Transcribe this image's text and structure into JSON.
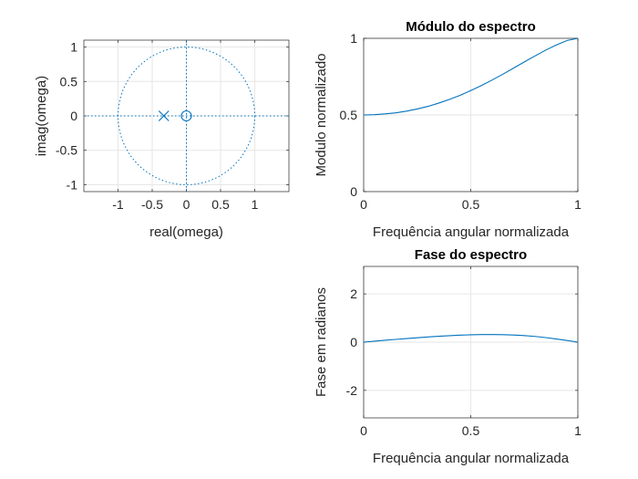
{
  "chart_data": [
    {
      "type": "scatter",
      "name": "pole-zero-plot",
      "xlabel": "real(omega)",
      "ylabel": "imag(omega)",
      "xlim": [
        -1.5,
        1.5
      ],
      "ylim": [
        -1.1,
        1.1
      ],
      "xticks": [
        -1,
        -0.5,
        0,
        0.5,
        1
      ],
      "xtick_labels": [
        "-1",
        "-0.5",
        "0",
        "0.5",
        "1"
      ],
      "yticks": [
        -1,
        -0.5,
        0,
        0.5,
        1
      ],
      "ytick_labels": [
        "-1",
        "-0.5",
        "0",
        "0.5",
        "1"
      ],
      "grid": true,
      "unit_circle": true,
      "zeros": [
        [
          0,
          0
        ]
      ],
      "poles": [
        [
          -0.33,
          0
        ]
      ],
      "color": "#0072BD",
      "grid_color": "#e6e6e6",
      "axis_color": "#262626"
    },
    {
      "type": "line",
      "name": "magnitude",
      "title": "Módulo do espectro",
      "xlabel": "Frequência angular normalizada",
      "ylabel": "Modulo normalizado",
      "xlim": [
        0,
        1
      ],
      "ylim": [
        0,
        1
      ],
      "xticks": [
        0,
        0.5,
        1
      ],
      "xtick_labels": [
        "0",
        "0.5",
        "1"
      ],
      "yticks": [
        0,
        0.5,
        1
      ],
      "ytick_labels": [
        "0",
        "0.5",
        "1"
      ],
      "grid": true,
      "series": [
        {
          "x": [
            0,
            0.05,
            0.1,
            0.15,
            0.2,
            0.25,
            0.3,
            0.35,
            0.4,
            0.45,
            0.5,
            0.55,
            0.6,
            0.65,
            0.7,
            0.75,
            0.8,
            0.85,
            0.9,
            0.95,
            1.0
          ],
          "y": [
            0.5,
            0.502,
            0.507,
            0.514,
            0.525,
            0.539,
            0.556,
            0.577,
            0.601,
            0.628,
            0.659,
            0.692,
            0.728,
            0.766,
            0.806,
            0.846,
            0.885,
            0.923,
            0.957,
            0.986,
            1.0
          ]
        }
      ],
      "color": "#0072BD",
      "grid_color": "#e6e6e6",
      "axis_color": "#262626"
    },
    {
      "type": "line",
      "name": "phase",
      "title": "Fase do espectro",
      "xlabel": "Frequência angular normalizada",
      "ylabel": "Fase em radianos",
      "xlim": [
        0,
        1
      ],
      "ylim": [
        -3.1416,
        3.1416
      ],
      "xticks": [
        0,
        0.5,
        1
      ],
      "xtick_labels": [
        "0",
        "0.5",
        "1"
      ],
      "yticks": [
        -2,
        0,
        2
      ],
      "ytick_labels": [
        "-2",
        "0",
        "2"
      ],
      "grid": true,
      "series": [
        {
          "x": [
            0,
            0.05,
            0.1,
            0.15,
            0.2,
            0.25,
            0.3,
            0.35,
            0.4,
            0.45,
            0.5,
            0.55,
            0.6,
            0.65,
            0.7,
            0.75,
            0.8,
            0.85,
            0.9,
            0.95,
            1.0
          ],
          "y": [
            0,
            0.039,
            0.077,
            0.114,
            0.15,
            0.184,
            0.215,
            0.244,
            0.268,
            0.289,
            0.304,
            0.314,
            0.316,
            0.311,
            0.297,
            0.272,
            0.236,
            0.189,
            0.131,
            0.067,
            0
          ]
        }
      ],
      "color": "#0072BD",
      "grid_color": "#e6e6e6",
      "axis_color": "#262626"
    }
  ]
}
